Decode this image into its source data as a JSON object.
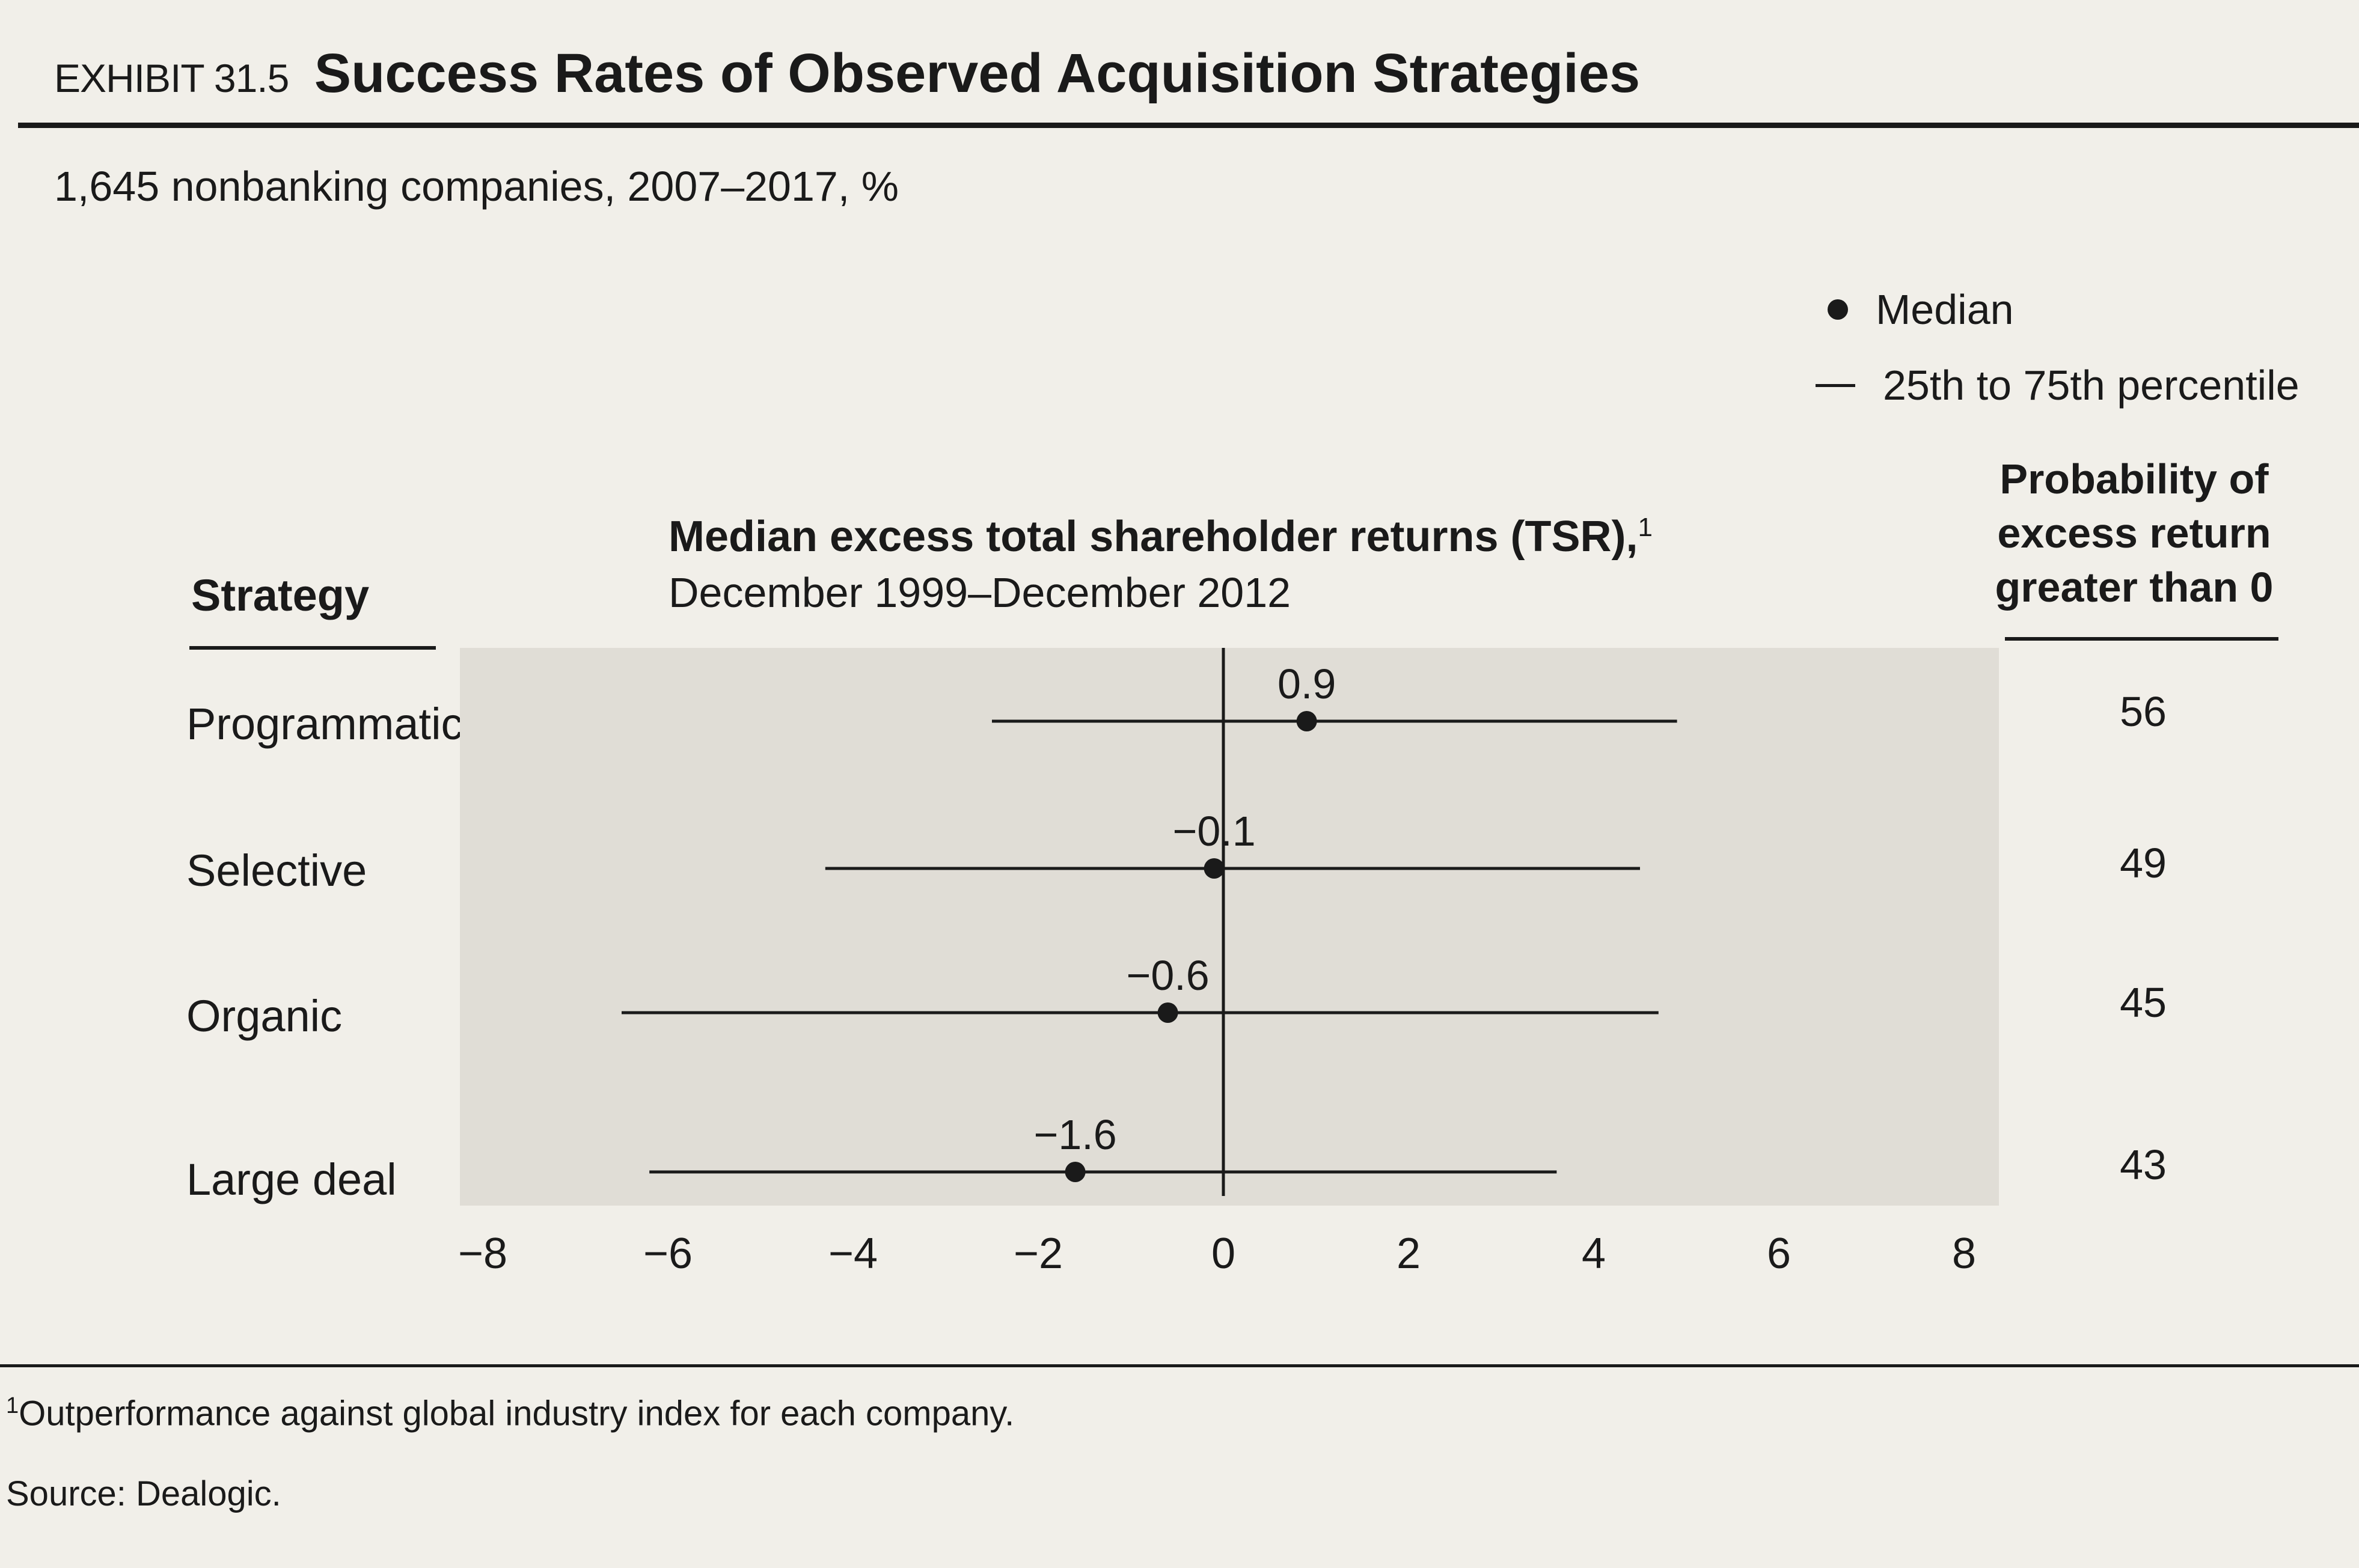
{
  "exhibit": {
    "number": "EXHIBIT 31.5",
    "title": "Success Rates of Observed Acquisition Strategies"
  },
  "subtitle": "1,645 nonbanking companies, 2007–2017, %",
  "legend": {
    "median": "Median",
    "range": "25th to 75th percentile"
  },
  "headers": {
    "strategy": "Strategy",
    "tsr_title": "Median excess total shareholder returns (TSR),",
    "tsr_footnote_mark": "1",
    "tsr_period": "December 1999–December 2012",
    "probability": [
      "Probability of",
      "excess return",
      "greater than 0"
    ]
  },
  "rows": [
    {
      "strategy": "Programmatic",
      "probability": "56"
    },
    {
      "strategy": "Selective",
      "probability": "49"
    },
    {
      "strategy": "Organic",
      "probability": "45"
    },
    {
      "strategy": "Large deal",
      "probability": "43"
    }
  ],
  "chart_data": {
    "type": "scatter",
    "categories": [
      "Programmatic",
      "Selective",
      "Organic",
      "Large deal"
    ],
    "median": [
      0.9,
      -0.1,
      -0.6,
      -1.6
    ],
    "median_labels": [
      "0.9",
      "−0.1",
      "−0.6",
      "−1.6"
    ],
    "p25": [
      -2.5,
      -4.3,
      -6.5,
      -6.2
    ],
    "p75": [
      4.9,
      4.5,
      4.7,
      3.6
    ],
    "xlim": [
      -8,
      8
    ],
    "xticks": [
      -8,
      -6,
      -4,
      -2,
      0,
      2,
      4,
      6,
      8
    ],
    "xtick_labels": [
      "−8",
      "−6",
      "−4",
      "−2",
      "0",
      "2",
      "4",
      "6",
      "8"
    ],
    "grid": false,
    "legend_position": "top-right"
  },
  "footnote": {
    "mark": "1",
    "text": "Outperformance against global industry index for each company."
  },
  "source": "Source: Dealogic.",
  "colors": {
    "background": "#f1efe9",
    "plot_shade": "#e0ddd6",
    "ink": "#1a1a1a"
  }
}
